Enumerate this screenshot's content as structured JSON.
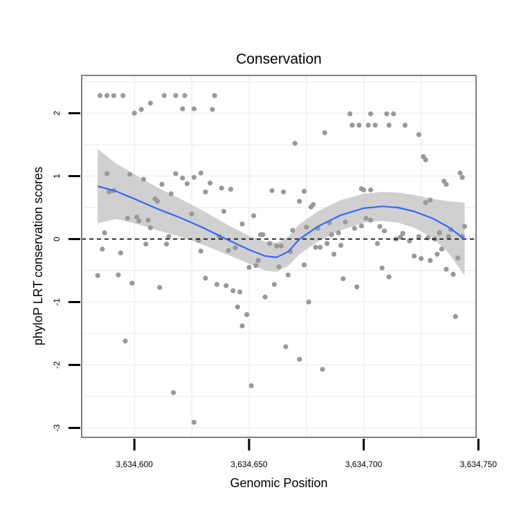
{
  "chart_data": {
    "type": "scatter",
    "title": "Conservation",
    "xlabel": "Genomic Position",
    "ylabel": "phyloP LRT conservation scores",
    "xlim": [
      3634577,
      3634749
    ],
    "ylim": [
      -3.15,
      2.6
    ],
    "x_ticks": [
      3634600,
      3634650,
      3634700,
      3634750
    ],
    "x_tick_labels": [
      "3,634,600",
      "3,634,650",
      "3,634,700",
      "3,634,750"
    ],
    "y_ticks": [
      -3,
      -2,
      -1,
      0,
      1,
      2
    ],
    "y_tick_labels": [
      "-3",
      "-2",
      "-1",
      "0",
      "1",
      "2"
    ],
    "reference_line": {
      "y": 0,
      "style": "dashed"
    },
    "colors": {
      "points": "#999999",
      "smooth": "#3366FF",
      "band": "#C8C8C8",
      "panel_border": "#7F7F7F",
      "grid": "#F2F2F2"
    },
    "points": [
      {
        "x": 3634585,
        "y": 2.28
      },
      {
        "x": 3634588,
        "y": 2.28
      },
      {
        "x": 3634591,
        "y": 2.28
      },
      {
        "x": 3634595,
        "y": 2.28
      },
      {
        "x": 3634600,
        "y": 2.0
      },
      {
        "x": 3634603,
        "y": 2.06
      },
      {
        "x": 3634607,
        "y": 2.16
      },
      {
        "x": 3634613,
        "y": 2.28
      },
      {
        "x": 3634618,
        "y": 2.28
      },
      {
        "x": 3634621,
        "y": 2.07
      },
      {
        "x": 3634622,
        "y": 2.28
      },
      {
        "x": 3634626,
        "y": 2.07
      },
      {
        "x": 3634634,
        "y": 2.06
      },
      {
        "x": 3634635,
        "y": 2.28
      },
      {
        "x": 3634670,
        "y": 1.52
      },
      {
        "x": 3634683,
        "y": 1.69
      },
      {
        "x": 3634694,
        "y": 1.99
      },
      {
        "x": 3634695,
        "y": 1.81
      },
      {
        "x": 3634698,
        "y": 1.81
      },
      {
        "x": 3634702,
        "y": 1.81
      },
      {
        "x": 3634703,
        "y": 1.99
      },
      {
        "x": 3634705,
        "y": 1.81
      },
      {
        "x": 3634710,
        "y": 1.99
      },
      {
        "x": 3634711,
        "y": 1.81
      },
      {
        "x": 3634713,
        "y": 1.99
      },
      {
        "x": 3634718,
        "y": 1.81
      },
      {
        "x": 3634724,
        "y": 1.66
      },
      {
        "x": 3634726,
        "y": 1.31
      },
      {
        "x": 3634727,
        "y": 1.26
      },
      {
        "x": 3634588,
        "y": 1.04
      },
      {
        "x": 3634589,
        "y": 0.75
      },
      {
        "x": 3634591,
        "y": 0.77
      },
      {
        "x": 3634598,
        "y": 1.03
      },
      {
        "x": 3634604,
        "y": 0.95
      },
      {
        "x": 3634609,
        "y": 0.64
      },
      {
        "x": 3634612,
        "y": 0.87
      },
      {
        "x": 3634616,
        "y": 0.72
      },
      {
        "x": 3634618,
        "y": 1.04
      },
      {
        "x": 3634621,
        "y": 0.97
      },
      {
        "x": 3634623,
        "y": 0.88
      },
      {
        "x": 3634626,
        "y": 0.98
      },
      {
        "x": 3634629,
        "y": 1.05
      },
      {
        "x": 3634631,
        "y": 0.75
      },
      {
        "x": 3634633,
        "y": 0.89
      },
      {
        "x": 3634638,
        "y": 0.81
      },
      {
        "x": 3634642,
        "y": 0.79
      },
      {
        "x": 3634647,
        "y": 0.24
      },
      {
        "x": 3634652,
        "y": 0.37
      },
      {
        "x": 3634660,
        "y": 0.77
      },
      {
        "x": 3634665,
        "y": 0.75
      },
      {
        "x": 3634672,
        "y": 0.6
      },
      {
        "x": 3634674,
        "y": 0.76
      },
      {
        "x": 3634678,
        "y": 0.55
      },
      {
        "x": 3634699,
        "y": 0.8
      },
      {
        "x": 3634700,
        "y": 0.78
      },
      {
        "x": 3634703,
        "y": 0.78
      },
      {
        "x": 3634727,
        "y": 0.58
      },
      {
        "x": 3634729,
        "y": 0.62
      },
      {
        "x": 3634735,
        "y": 0.92
      },
      {
        "x": 3634736,
        "y": 0.87
      },
      {
        "x": 3634742,
        "y": 1.05
      },
      {
        "x": 3634743,
        "y": 0.98
      },
      {
        "x": 3634584,
        "y": -0.58
      },
      {
        "x": 3634586,
        "y": -0.16
      },
      {
        "x": 3634587,
        "y": 0.1
      },
      {
        "x": 3634593,
        "y": -0.57
      },
      {
        "x": 3634594,
        "y": -0.22
      },
      {
        "x": 3634596,
        "y": -1.62
      },
      {
        "x": 3634597,
        "y": 0.33
      },
      {
        "x": 3634599,
        "y": -0.7
      },
      {
        "x": 3634601,
        "y": 0.35
      },
      {
        "x": 3634602,
        "y": 0.29
      },
      {
        "x": 3634605,
        "y": -0.08
      },
      {
        "x": 3634606,
        "y": 0.3
      },
      {
        "x": 3634607,
        "y": 0.18
      },
      {
        "x": 3634610,
        "y": 0.6
      },
      {
        "x": 3634611,
        "y": -0.77
      },
      {
        "x": 3634614,
        "y": -0.08
      },
      {
        "x": 3634615,
        "y": 0.04
      },
      {
        "x": 3634617,
        "y": -2.44
      },
      {
        "x": 3634625,
        "y": 0.4
      },
      {
        "x": 3634626,
        "y": -2.91
      },
      {
        "x": 3634628,
        "y": -0.02
      },
      {
        "x": 3634629,
        "y": -0.19
      },
      {
        "x": 3634631,
        "y": -0.62
      },
      {
        "x": 3634636,
        "y": -0.72
      },
      {
        "x": 3634637,
        "y": 0.04
      },
      {
        "x": 3634639,
        "y": 0.44
      },
      {
        "x": 3634640,
        "y": -0.74
      },
      {
        "x": 3634641,
        "y": -0.18
      },
      {
        "x": 3634643,
        "y": -0.82
      },
      {
        "x": 3634644,
        "y": -0.14
      },
      {
        "x": 3634645,
        "y": -1.08
      },
      {
        "x": 3634646,
        "y": -0.84
      },
      {
        "x": 3634647,
        "y": -1.38
      },
      {
        "x": 3634649,
        "y": -1.2
      },
      {
        "x": 3634650,
        "y": -0.45
      },
      {
        "x": 3634651,
        "y": -2.33
      },
      {
        "x": 3634653,
        "y": -0.42
      },
      {
        "x": 3634654,
        "y": -0.34
      },
      {
        "x": 3634655,
        "y": 0.07
      },
      {
        "x": 3634656,
        "y": 0.07
      },
      {
        "x": 3634657,
        "y": -0.92
      },
      {
        "x": 3634659,
        "y": -0.07
      },
      {
        "x": 3634661,
        "y": -0.72
      },
      {
        "x": 3634662,
        "y": -0.11
      },
      {
        "x": 3634663,
        "y": -0.44
      },
      {
        "x": 3634664,
        "y": -0.11
      },
      {
        "x": 3634666,
        "y": -1.71
      },
      {
        "x": 3634667,
        "y": -0.57
      },
      {
        "x": 3634668,
        "y": -0.2
      },
      {
        "x": 3634669,
        "y": 0.14
      },
      {
        "x": 3634672,
        "y": -1.91
      },
      {
        "x": 3634674,
        "y": -0.41
      },
      {
        "x": 3634675,
        "y": 0.19
      },
      {
        "x": 3634676,
        "y": -1.0
      },
      {
        "x": 3634677,
        "y": 0.51
      },
      {
        "x": 3634679,
        "y": -0.13
      },
      {
        "x": 3634680,
        "y": 0.17
      },
      {
        "x": 3634681,
        "y": -0.13
      },
      {
        "x": 3634682,
        "y": -2.07
      },
      {
        "x": 3634684,
        "y": -0.07
      },
      {
        "x": 3634685,
        "y": 0.26
      },
      {
        "x": 3634686,
        "y": 0.07
      },
      {
        "x": 3634687,
        "y": -0.24
      },
      {
        "x": 3634689,
        "y": 0.1
      },
      {
        "x": 3634690,
        "y": -0.1
      },
      {
        "x": 3634691,
        "y": -0.63
      },
      {
        "x": 3634692,
        "y": 0.27
      },
      {
        "x": 3634696,
        "y": 0.17
      },
      {
        "x": 3634697,
        "y": -0.76
      },
      {
        "x": 3634699,
        "y": 0.21
      },
      {
        "x": 3634701,
        "y": 0.33
      },
      {
        "x": 3634703,
        "y": 0.3
      },
      {
        "x": 3634706,
        "y": -0.07
      },
      {
        "x": 3634707,
        "y": 0.2
      },
      {
        "x": 3634708,
        "y": -0.46
      },
      {
        "x": 3634709,
        "y": 0.13
      },
      {
        "x": 3634711,
        "y": -0.6
      },
      {
        "x": 3634714,
        "y": 0.0
      },
      {
        "x": 3634716,
        "y": 0.03
      },
      {
        "x": 3634717,
        "y": 0.09
      },
      {
        "x": 3634720,
        "y": -0.03
      },
      {
        "x": 3634722,
        "y": -0.27
      },
      {
        "x": 3634724,
        "y": 0.04
      },
      {
        "x": 3634725,
        "y": -0.31
      },
      {
        "x": 3634728,
        "y": 0.02
      },
      {
        "x": 3634729,
        "y": -0.34
      },
      {
        "x": 3634731,
        "y": 0.0
      },
      {
        "x": 3634732,
        "y": -0.24
      },
      {
        "x": 3634733,
        "y": 0.1
      },
      {
        "x": 3634734,
        "y": -0.16
      },
      {
        "x": 3634736,
        "y": -0.48
      },
      {
        "x": 3634737,
        "y": 0.04
      },
      {
        "x": 3634738,
        "y": 0.15
      },
      {
        "x": 3634739,
        "y": -0.56
      },
      {
        "x": 3634740,
        "y": -1.23
      },
      {
        "x": 3634741,
        "y": -0.3
      },
      {
        "x": 3634743,
        "y": 0.04
      },
      {
        "x": 3634744,
        "y": 0.2
      }
    ],
    "smooth_line": [
      {
        "x": 3634584,
        "y": 0.84
      },
      {
        "x": 3634592,
        "y": 0.76
      },
      {
        "x": 3634600,
        "y": 0.64
      },
      {
        "x": 3634610,
        "y": 0.48
      },
      {
        "x": 3634620,
        "y": 0.34
      },
      {
        "x": 3634630,
        "y": 0.18
      },
      {
        "x": 3634640,
        "y": 0.0
      },
      {
        "x": 3634650,
        "y": -0.17
      },
      {
        "x": 3634657,
        "y": -0.27
      },
      {
        "x": 3634662,
        "y": -0.29
      },
      {
        "x": 3634667,
        "y": -0.2
      },
      {
        "x": 3634672,
        "y": 0.0
      },
      {
        "x": 3634680,
        "y": 0.2
      },
      {
        "x": 3634690,
        "y": 0.38
      },
      {
        "x": 3634700,
        "y": 0.49
      },
      {
        "x": 3634708,
        "y": 0.52
      },
      {
        "x": 3634715,
        "y": 0.5
      },
      {
        "x": 3634722,
        "y": 0.44
      },
      {
        "x": 3634730,
        "y": 0.33
      },
      {
        "x": 3634737,
        "y": 0.19
      },
      {
        "x": 3634744,
        "y": 0.0
      }
    ],
    "confidence_band": {
      "upper": [
        {
          "x": 3634584,
          "y": 1.43
        },
        {
          "x": 3634592,
          "y": 1.2
        },
        {
          "x": 3634600,
          "y": 1.03
        },
        {
          "x": 3634610,
          "y": 0.82
        },
        {
          "x": 3634620,
          "y": 0.64
        },
        {
          "x": 3634630,
          "y": 0.45
        },
        {
          "x": 3634640,
          "y": 0.24
        },
        {
          "x": 3634650,
          "y": 0.05
        },
        {
          "x": 3634657,
          "y": -0.04
        },
        {
          "x": 3634662,
          "y": -0.06
        },
        {
          "x": 3634667,
          "y": 0.03
        },
        {
          "x": 3634672,
          "y": 0.24
        },
        {
          "x": 3634680,
          "y": 0.44
        },
        {
          "x": 3634690,
          "y": 0.62
        },
        {
          "x": 3634700,
          "y": 0.72
        },
        {
          "x": 3634708,
          "y": 0.75
        },
        {
          "x": 3634715,
          "y": 0.74
        },
        {
          "x": 3634722,
          "y": 0.7
        },
        {
          "x": 3634730,
          "y": 0.64
        },
        {
          "x": 3634737,
          "y": 0.6
        },
        {
          "x": 3634744,
          "y": 0.58
        }
      ],
      "lower": [
        {
          "x": 3634584,
          "y": 0.25
        },
        {
          "x": 3634592,
          "y": 0.32
        },
        {
          "x": 3634600,
          "y": 0.25
        },
        {
          "x": 3634610,
          "y": 0.14
        },
        {
          "x": 3634620,
          "y": 0.04
        },
        {
          "x": 3634630,
          "y": -0.09
        },
        {
          "x": 3634640,
          "y": -0.24
        },
        {
          "x": 3634650,
          "y": -0.39
        },
        {
          "x": 3634657,
          "y": -0.5
        },
        {
          "x": 3634662,
          "y": -0.52
        },
        {
          "x": 3634667,
          "y": -0.43
        },
        {
          "x": 3634672,
          "y": -0.24
        },
        {
          "x": 3634680,
          "y": -0.04
        },
        {
          "x": 3634690,
          "y": 0.14
        },
        {
          "x": 3634700,
          "y": 0.26
        },
        {
          "x": 3634708,
          "y": 0.29
        },
        {
          "x": 3634715,
          "y": 0.26
        },
        {
          "x": 3634722,
          "y": 0.18
        },
        {
          "x": 3634730,
          "y": 0.02
        },
        {
          "x": 3634737,
          "y": -0.22
        },
        {
          "x": 3634744,
          "y": -0.58
        }
      ]
    }
  }
}
